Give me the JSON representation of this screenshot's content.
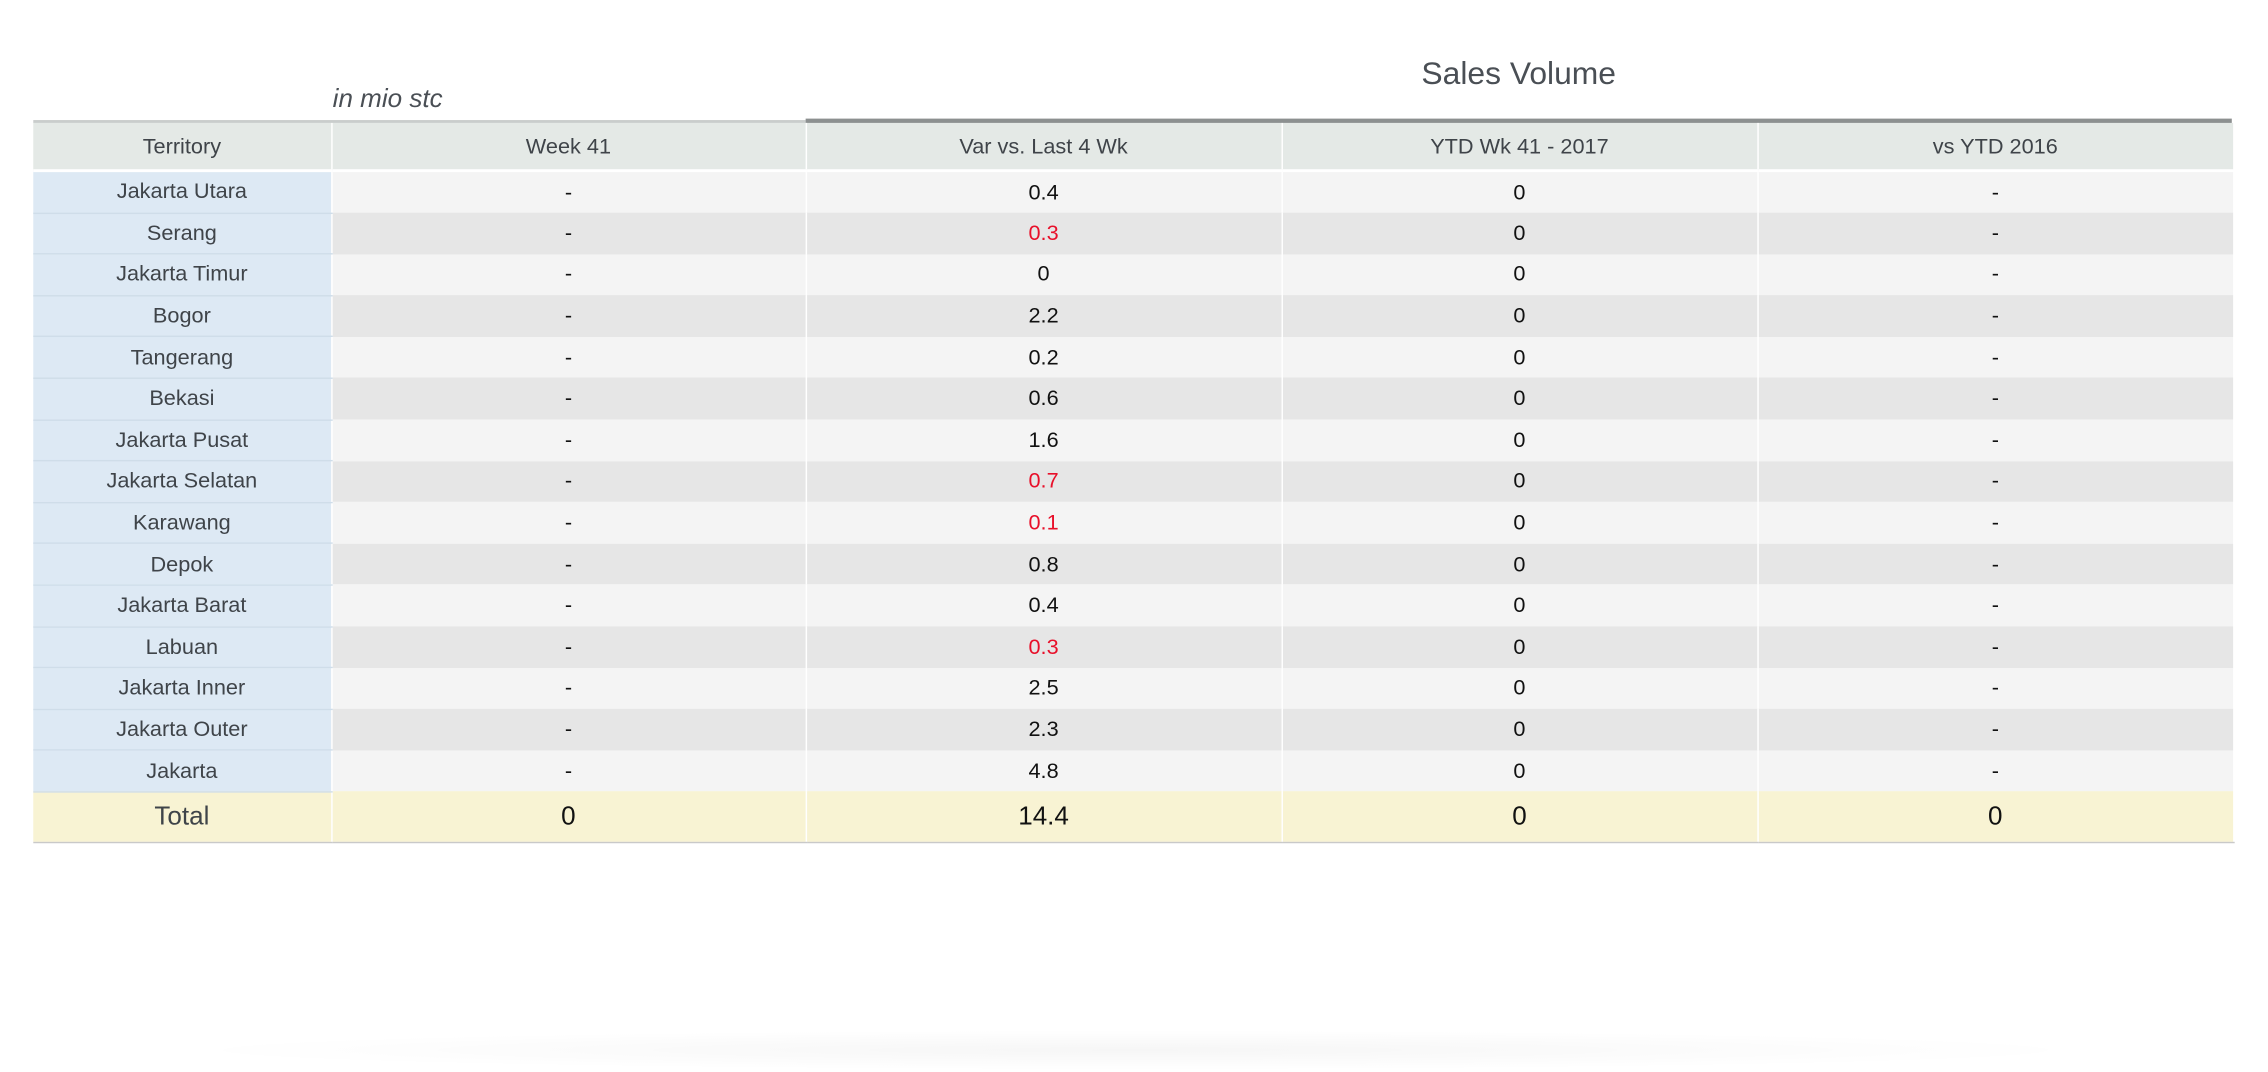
{
  "unit_label": "in mio stc",
  "title": "Sales Volume",
  "colors": {
    "header_bg": "#e4e9e6",
    "territory_bg": "#dde9f4",
    "row_light": "#f4f4f4",
    "row_dark": "#e6e6e6",
    "total_bg": "#f8f3d3",
    "negative_text": "#e8102a"
  },
  "chart_data": {
    "type": "table",
    "title": "Sales Volume",
    "unit": "in mio stc",
    "columns": [
      "Territory",
      "Week 41",
      "Var vs. Last 4 Wk",
      "YTD Wk 41 - 2017",
      "vs YTD 2016"
    ],
    "rows": [
      {
        "territory": "Jakarta Utara",
        "week41": "-",
        "var_last4": "0.4",
        "var_negative": false,
        "ytd2017": "0",
        "vs_ytd2016": "-"
      },
      {
        "territory": "Serang",
        "week41": "-",
        "var_last4": "0.3",
        "var_negative": true,
        "ytd2017": "0",
        "vs_ytd2016": "-"
      },
      {
        "territory": "Jakarta Timur",
        "week41": "-",
        "var_last4": "0",
        "var_negative": false,
        "ytd2017": "0",
        "vs_ytd2016": "-"
      },
      {
        "territory": "Bogor",
        "week41": "-",
        "var_last4": "2.2",
        "var_negative": false,
        "ytd2017": "0",
        "vs_ytd2016": "-"
      },
      {
        "territory": "Tangerang",
        "week41": "-",
        "var_last4": "0.2",
        "var_negative": false,
        "ytd2017": "0",
        "vs_ytd2016": "-"
      },
      {
        "territory": "Bekasi",
        "week41": "-",
        "var_last4": "0.6",
        "var_negative": false,
        "ytd2017": "0",
        "vs_ytd2016": "-"
      },
      {
        "territory": "Jakarta Pusat",
        "week41": "-",
        "var_last4": "1.6",
        "var_negative": false,
        "ytd2017": "0",
        "vs_ytd2016": "-"
      },
      {
        "territory": "Jakarta Selatan",
        "week41": "-",
        "var_last4": "0.7",
        "var_negative": true,
        "ytd2017": "0",
        "vs_ytd2016": "-"
      },
      {
        "territory": "Karawang",
        "week41": "-",
        "var_last4": "0.1",
        "var_negative": true,
        "ytd2017": "0",
        "vs_ytd2016": "-"
      },
      {
        "territory": "Depok",
        "week41": "-",
        "var_last4": "0.8",
        "var_negative": false,
        "ytd2017": "0",
        "vs_ytd2016": "-"
      },
      {
        "territory": "Jakarta Barat",
        "week41": "-",
        "var_last4": "0.4",
        "var_negative": false,
        "ytd2017": "0",
        "vs_ytd2016": "-"
      },
      {
        "territory": "Labuan",
        "week41": "-",
        "var_last4": "0.3",
        "var_negative": true,
        "ytd2017": "0",
        "vs_ytd2016": "-"
      },
      {
        "territory": "Jakarta Inner",
        "week41": "-",
        "var_last4": "2.5",
        "var_negative": false,
        "ytd2017": "0",
        "vs_ytd2016": "-"
      },
      {
        "territory": "Jakarta Outer",
        "week41": "-",
        "var_last4": "2.3",
        "var_negative": false,
        "ytd2017": "0",
        "vs_ytd2016": "-"
      },
      {
        "territory": "Jakarta",
        "week41": "-",
        "var_last4": "4.8",
        "var_negative": false,
        "ytd2017": "0",
        "vs_ytd2016": "-"
      }
    ],
    "total": {
      "territory": "Total",
      "week41": "0",
      "var_last4": "14.4",
      "ytd2017": "0",
      "vs_ytd2016": "0"
    }
  }
}
